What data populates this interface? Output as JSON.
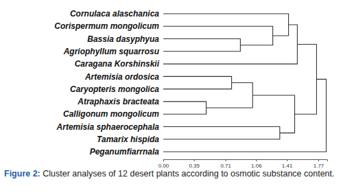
{
  "chart_data": {
    "type": "dendrogram",
    "labels": [
      "Cornulaca alaschanica",
      "Corispermum mongolicum",
      "Bassia dasyphyua",
      "Agriophyllum squarrosu",
      "Caragana Korshinskii",
      "Artemisia ordosica",
      "Caryopteris mongolica",
      "Atraphaxis bracteata",
      "Calligonum mongolicum",
      "Artemisia sphaerocephala",
      "Tamarix hispida",
      "Peganumfiarrnala"
    ],
    "merges": [
      {
        "children": [
          2,
          3
        ],
        "height": 0.88
      },
      {
        "children": [
          7,
          8
        ],
        "height": 0.49
      },
      {
        "children": [
          5,
          6
        ],
        "height": 0.78
      },
      {
        "children": [
          14,
          13
        ],
        "height": 1.02
      },
      {
        "children": [
          1,
          12
        ],
        "height": 1.25
      },
      {
        "children": [
          9,
          10
        ],
        "height": 1.33
      },
      {
        "children": [
          0,
          16
        ],
        "height": 1.43
      },
      {
        "children": [
          18,
          4
        ],
        "height": 1.53
      },
      {
        "children": [
          15,
          17
        ],
        "height": 1.5
      },
      {
        "children": [
          19,
          20
        ],
        "height": 1.75
      },
      {
        "children": [
          21,
          11
        ],
        "height": 1.86
      }
    ],
    "xlim": [
      0,
      1.87
    ],
    "xticks": [
      {
        "value": 0,
        "label": "0.00"
      },
      0.35,
      0.71,
      1.06,
      1.41,
      1.77
    ],
    "caption": {
      "label": "Figure 2:",
      "text": "Cluster analyses of 12 desert plants according to osmotic substance content."
    }
  }
}
